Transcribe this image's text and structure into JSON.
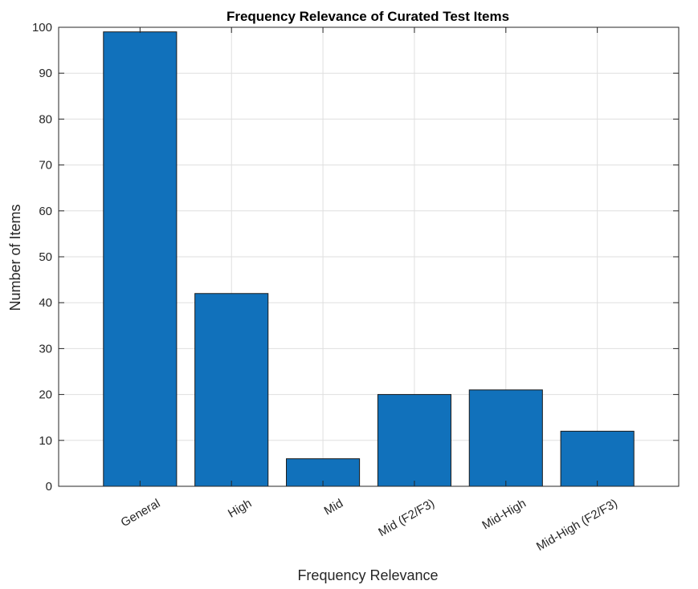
{
  "chart_data": {
    "type": "bar",
    "title": "Frequency Relevance of Curated Test Items",
    "xlabel": "Frequency Relevance",
    "ylabel": "Number of Items",
    "categories": [
      "General",
      "High",
      "Mid",
      "Mid (F2/F3)",
      "Mid-High",
      "Mid-High (F2/F3)"
    ],
    "values": [
      99,
      42,
      6,
      20,
      21,
      12
    ],
    "ylim": [
      0,
      100
    ],
    "yticks": [
      0,
      10,
      20,
      30,
      40,
      50,
      60,
      70,
      80,
      90,
      100
    ],
    "grid": true,
    "bar_color": "#1171BB"
  }
}
